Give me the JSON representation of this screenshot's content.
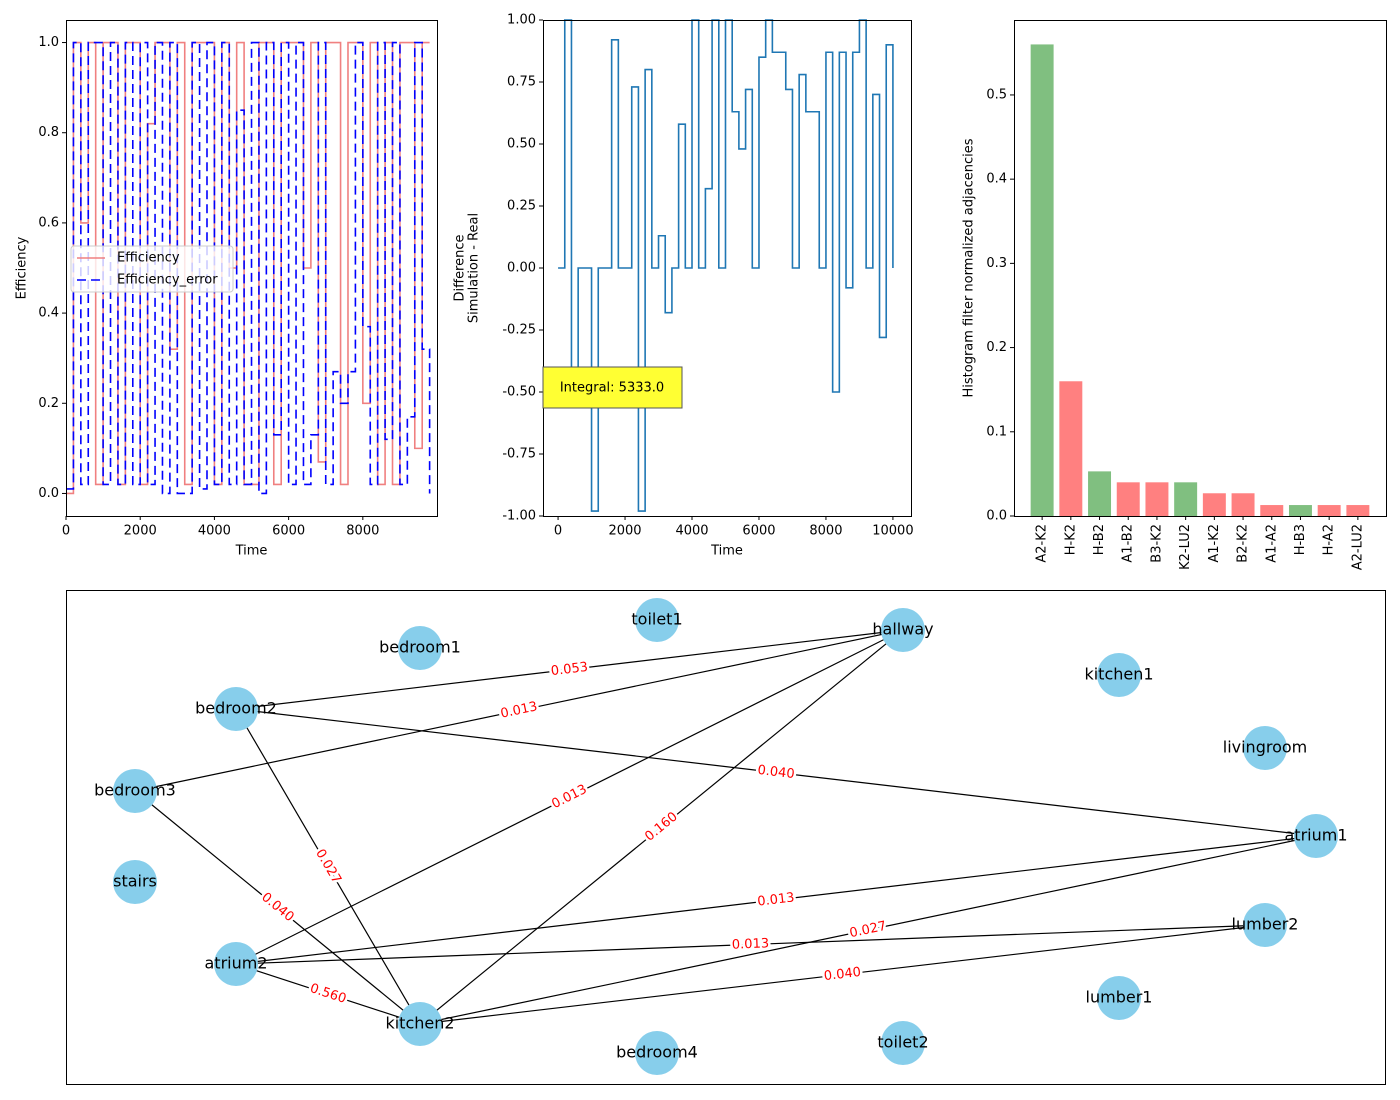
{
  "chart_data": [
    {
      "type": "line",
      "xlabel": "Time",
      "ylabel": [
        "Efficiency"
      ],
      "xlim": [
        0,
        9999
      ],
      "xticks": [
        0,
        2000,
        4000,
        6000,
        8000
      ],
      "ylim": [
        -0.05,
        1.05
      ],
      "yticks": [
        {
          "value": 0,
          "label": "0.0"
        },
        0.2,
        0.4,
        0.6,
        0.8,
        {
          "value": 1,
          "label": "1.0"
        }
      ],
      "grid": false,
      "legend": "center left",
      "x": [
        0,
        200,
        400,
        600,
        800,
        1000,
        1200,
        1400,
        1600,
        1800,
        2000,
        2200,
        2400,
        2600,
        2800,
        3000,
        3200,
        3400,
        3600,
        3800,
        4000,
        4200,
        4400,
        4600,
        4800,
        5000,
        5200,
        5400,
        5600,
        5800,
        6000,
        6200,
        6400,
        6600,
        6800,
        7000,
        7200,
        7400,
        7600,
        7800,
        8000,
        8200,
        8400,
        8600,
        8800,
        9000,
        9200,
        9400,
        9600,
        9800
      ],
      "series": [
        {
          "name": "Efficiency",
          "color": "#f08080",
          "linestyle": "solid",
          "values": [
            0.0,
            1.0,
            0.6,
            1.0,
            0.02,
            1.0,
            1.0,
            0.02,
            1.0,
            1.0,
            0.02,
            0.82,
            1.0,
            1.0,
            0.32,
            1.0,
            0.02,
            1.0,
            1.0,
            1.0,
            0.02,
            1.0,
            0.5,
            1.0,
            0.02,
            0.02,
            1.0,
            1.0,
            0.02,
            1.0,
            1.0,
            1.0,
            0.5,
            1.0,
            0.07,
            1.0,
            1.0,
            0.02,
            1.0,
            1.0,
            0.2,
            1.0,
            0.02,
            1.0,
            0.02,
            1.0,
            1.0,
            0.1,
            1.0,
            1.0
          ]
        },
        {
          "name": "Efficiency_error",
          "color": "#0000ff",
          "linestyle": "dashed",
          "values": [
            0.01,
            1.0,
            0.02,
            1.0,
            1.0,
            0.02,
            1.0,
            0.02,
            1.0,
            0.02,
            1.0,
            0.02,
            1.0,
            0.0,
            1.0,
            0.0,
            0.0,
            1.0,
            0.01,
            1.0,
            0.02,
            1.0,
            0.02,
            0.85,
            0.02,
            1.0,
            0.0,
            1.0,
            0.13,
            1.0,
            0.02,
            1.0,
            0.02,
            0.13,
            1.0,
            0.02,
            0.27,
            0.2,
            0.27,
            1.0,
            0.37,
            0.02,
            1.0,
            0.12,
            1.0,
            0.02,
            0.17,
            1.0,
            0.32,
            0.0
          ]
        }
      ]
    },
    {
      "type": "line",
      "xlabel": "Time",
      "ylabel": [
        "Difference",
        "Simulation - Real"
      ],
      "annotation": "Integral: 5333.0",
      "xlim": [
        -450,
        10540
      ],
      "xticks": [
        0,
        2000,
        4000,
        6000,
        8000,
        10000
      ],
      "ylim": [
        -1,
        1
      ],
      "yticks": [
        {
          "value": -1,
          "label": "-1.00"
        },
        -0.75,
        {
          "value": -0.5,
          "label": "-0.50"
        },
        -0.25,
        {
          "value": 0,
          "label": "0.00"
        },
        0.25,
        {
          "value": 0.5,
          "label": "0.50"
        },
        0.75,
        {
          "value": 1,
          "label": "1.00"
        }
      ],
      "grid": false,
      "x": [
        0,
        200,
        400,
        600,
        800,
        1000,
        1200,
        1400,
        1600,
        1800,
        2000,
        2200,
        2400,
        2600,
        2800,
        3000,
        3200,
        3400,
        3600,
        3800,
        4000,
        4200,
        4400,
        4600,
        4800,
        5000,
        5200,
        5400,
        5600,
        5800,
        6000,
        6200,
        6400,
        6600,
        6800,
        7000,
        7200,
        7400,
        7600,
        7800,
        8000,
        8200,
        8400,
        8600,
        8800,
        9000,
        9200,
        9400,
        9600,
        9800,
        10000
      ],
      "series": [
        {
          "name": "Difference",
          "color": "#1f77b4",
          "linestyle": "solid",
          "values": [
            0.0,
            1.0,
            -0.42,
            0.0,
            0.0,
            -0.98,
            0.0,
            0.0,
            0.92,
            0.0,
            0.0,
            0.73,
            -0.98,
            0.8,
            0.0,
            0.13,
            -0.18,
            0.0,
            0.58,
            0.0,
            1.0,
            0.0,
            0.32,
            1.0,
            0.0,
            1.0,
            0.63,
            0.48,
            0.72,
            0.0,
            0.85,
            1.0,
            0.87,
            0.87,
            0.72,
            0.0,
            0.78,
            0.63,
            0.63,
            0.0,
            0.87,
            -0.5,
            0.87,
            -0.08,
            0.87,
            1.0,
            0.0,
            0.7,
            -0.28,
            0.9,
            0.0
          ]
        }
      ]
    },
    {
      "type": "bar",
      "ylabel": [
        "Histogram filter normalized adjacencies"
      ],
      "categories": [
        "A2-K2",
        "H-K2",
        "H-B2",
        "A1-B2",
        "B3-K2",
        "K2-LU2",
        "A1-K2",
        "B2-K2",
        "A1-A2",
        "H-B3",
        "H-A2",
        "A2-LU2"
      ],
      "values": [
        0.56,
        0.16,
        0.053,
        0.04,
        0.04,
        0.04,
        0.027,
        0.027,
        0.013,
        0.013,
        0.013,
        0.013
      ],
      "colors": [
        "#80bf80",
        "#ff8080",
        "#80bf80",
        "#ff8080",
        "#ff8080",
        "#80bf80",
        "#ff8080",
        "#ff8080",
        "#ff8080",
        "#80bf80",
        "#ff8080",
        "#ff8080"
      ],
      "ylim": [
        0,
        0.589
      ],
      "yticks": [
        {
          "value": 0,
          "label": "0.0"
        },
        0.1,
        0.2,
        0.3,
        0.4,
        0.5
      ],
      "grid": false
    }
  ],
  "graph": {
    "nodes": [
      "bedroom1",
      "toilet1",
      "hallway",
      "kitchen1",
      "bedroom2",
      "livingroom",
      "bedroom3",
      "atrium1",
      "stairs",
      "lumber2",
      "atrium2",
      "lumber1",
      "kitchen2",
      "bedroom4",
      "toilet2"
    ],
    "edges": [
      {
        "source": "bedroom2",
        "target": "hallway",
        "label": "0.053"
      },
      {
        "source": "bedroom3",
        "target": "hallway",
        "label": "0.013"
      },
      {
        "source": "atrium2",
        "target": "hallway",
        "label": "0.013"
      },
      {
        "source": "kitchen2",
        "target": "hallway",
        "label": "0.160"
      },
      {
        "source": "bedroom2",
        "target": "atrium1",
        "label": "0.040"
      },
      {
        "source": "bedroom2",
        "target": "kitchen2",
        "label": "0.027"
      },
      {
        "source": "bedroom3",
        "target": "kitchen2",
        "label": "0.040"
      },
      {
        "source": "atrium2",
        "target": "kitchen2",
        "label": "0.560"
      },
      {
        "source": "atrium2",
        "target": "atrium1",
        "label": "0.013"
      },
      {
        "source": "atrium2",
        "target": "lumber2",
        "label": "0.013"
      },
      {
        "source": "kitchen2",
        "target": "atrium1",
        "label": "0.027"
      },
      {
        "source": "kitchen2",
        "target": "lumber2",
        "label": "0.040"
      }
    ]
  }
}
